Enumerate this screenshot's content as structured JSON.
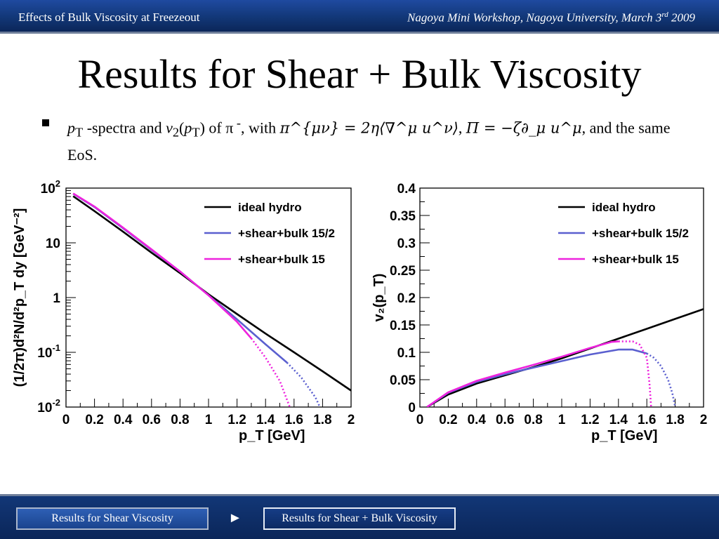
{
  "header": {
    "left": "Effects of Bulk Viscosity at Freezeout",
    "right": "Nagoya Mini Workshop, Nagoya University, March 3",
    "right_sup": "rd",
    "right_year": " 2009"
  },
  "title": "Results for Shear + Bulk Viscosity",
  "bullet": {
    "p1": "p",
    "p1_sub": "T",
    "t1": " -spectra and ",
    "v": "v",
    "v_sub": "2",
    "t2": "(",
    "p2": "p",
    "p2_sub": "T",
    "t3": ") of π",
    "pi_sup": " -",
    "t4": ", with ",
    "eq1": "π^{μν} = 2η⟨∇^μ u^ν⟩",
    "comma": ", ",
    "eq2": "Π = −ζ∂_μ u^μ",
    "t5": ", and the same EoS."
  },
  "footer": {
    "prev_label": "Results for Shear Viscosity",
    "arrow": "►",
    "current_label": "Results for Shear + Bulk Viscosity"
  },
  "colors": {
    "ideal": "#000000",
    "half": "#5a5fcf",
    "full": "#ee22dd",
    "header_bg": "#123777"
  },
  "chart_data": [
    {
      "type": "line",
      "log_y": true,
      "xlabel": "p_T [GeV]",
      "ylabel": "(1/2π)d²N/d²p_T dy [GeV⁻²]",
      "xlim": [
        0,
        2
      ],
      "ylim": [
        0.01,
        100
      ],
      "x_ticks": [
        "0",
        "0.2",
        "0.4",
        "0.6",
        "0.8",
        "1",
        "1.2",
        "1.4",
        "1.6",
        "1.8",
        "2"
      ],
      "y_ticks": [
        {
          "base": "10",
          "exp": "2",
          "value": 100
        },
        {
          "base": "10",
          "exp": "",
          "value": 10
        },
        {
          "base": "1",
          "exp": "",
          "value": 1
        },
        {
          "base": "10",
          "exp": "-1",
          "value": 0.1
        },
        {
          "base": "10",
          "exp": "-2",
          "value": 0.01
        }
      ],
      "legend": [
        "ideal hydro",
        "+shear+bulk 15/2",
        "+shear+bulk 15"
      ],
      "series": [
        {
          "name": "ideal hydro",
          "color": "#000000",
          "solid": [
            [
              0.05,
              71
            ],
            [
              0.2,
              38
            ],
            [
              0.4,
              16
            ],
            [
              0.6,
              6.6
            ],
            [
              0.8,
              2.8
            ],
            [
              1.0,
              1.15
            ],
            [
              1.2,
              0.5
            ],
            [
              1.4,
              0.22
            ],
            [
              1.6,
              0.1
            ],
            [
              1.8,
              0.045
            ],
            [
              2.0,
              0.02
            ]
          ]
        },
        {
          "name": "+shear+bulk 15/2",
          "color": "#5a5fcf",
          "solid": [
            [
              0.05,
              79
            ],
            [
              0.2,
              45
            ],
            [
              0.4,
              18.5
            ],
            [
              0.6,
              7.4
            ],
            [
              0.8,
              3.0
            ],
            [
              1.0,
              1.1
            ],
            [
              1.2,
              0.4
            ],
            [
              1.4,
              0.14
            ],
            [
              1.55,
              0.065
            ]
          ],
          "dotted": [
            [
              1.55,
              0.065
            ],
            [
              1.65,
              0.035
            ],
            [
              1.75,
              0.015
            ],
            [
              1.82,
              0.006
            ],
            [
              1.87,
              0.0015
            ],
            [
              1.89,
              0.0004
            ]
          ]
        },
        {
          "name": "+shear+bulk 15",
          "color": "#ee22dd",
          "solid": [
            [
              0.05,
              80
            ],
            [
              0.2,
              46
            ],
            [
              0.4,
              19
            ],
            [
              0.6,
              7.6
            ],
            [
              0.8,
              3.0
            ],
            [
              1.0,
              1.1
            ],
            [
              1.2,
              0.36
            ],
            [
              1.3,
              0.18
            ]
          ],
          "dotted": [
            [
              1.3,
              0.18
            ],
            [
              1.4,
              0.08
            ],
            [
              1.5,
              0.03
            ],
            [
              1.57,
              0.01
            ],
            [
              1.62,
              0.002
            ],
            [
              1.64,
              0.0004
            ]
          ]
        }
      ]
    },
    {
      "type": "line",
      "xlabel": "p_T [GeV]",
      "ylabel": "v₂(p_T)",
      "xlim": [
        0,
        2
      ],
      "ylim": [
        0,
        0.4
      ],
      "x_ticks": [
        "0",
        "0.2",
        "0.4",
        "0.6",
        "0.8",
        "1",
        "1.2",
        "1.4",
        "1.6",
        "1.8",
        "2"
      ],
      "y_ticks": [
        "0",
        "0.05",
        "0.1",
        "0.15",
        "0.2",
        "0.25",
        "0.3",
        "0.35",
        "0.4"
      ],
      "legend": [
        "ideal hydro",
        "+shear+bulk 15/2",
        "+shear+bulk 15"
      ],
      "series": [
        {
          "name": "ideal hydro",
          "color": "#000000",
          "solid": [
            [
              0.05,
              0.0
            ],
            [
              0.2,
              0.023
            ],
            [
              0.4,
              0.043
            ],
            [
              0.6,
              0.058
            ],
            [
              0.8,
              0.073
            ],
            [
              1.0,
              0.089
            ],
            [
              1.2,
              0.107
            ],
            [
              1.4,
              0.125
            ],
            [
              1.6,
              0.143
            ],
            [
              1.8,
              0.161
            ],
            [
              2.0,
              0.179
            ]
          ]
        },
        {
          "name": "+shear+bulk 15/2",
          "color": "#5a5fcf",
          "solid": [
            [
              0.05,
              0.0
            ],
            [
              0.2,
              0.026
            ],
            [
              0.4,
              0.046
            ],
            [
              0.6,
              0.06
            ],
            [
              0.8,
              0.072
            ],
            [
              1.0,
              0.084
            ],
            [
              1.2,
              0.096
            ],
            [
              1.4,
              0.105
            ],
            [
              1.5,
              0.105
            ],
            [
              1.6,
              0.098
            ]
          ],
          "dotted": [
            [
              1.6,
              0.098
            ],
            [
              1.65,
              0.09
            ],
            [
              1.7,
              0.075
            ],
            [
              1.75,
              0.05
            ],
            [
              1.78,
              0.025
            ],
            [
              1.8,
              0.0
            ]
          ]
        },
        {
          "name": "+shear+bulk 15",
          "color": "#ee22dd",
          "solid": [
            [
              0.05,
              0.0
            ],
            [
              0.2,
              0.027
            ],
            [
              0.4,
              0.048
            ],
            [
              0.6,
              0.063
            ],
            [
              0.8,
              0.077
            ],
            [
              1.0,
              0.092
            ],
            [
              1.2,
              0.108
            ],
            [
              1.35,
              0.119
            ],
            [
              1.4,
              0.12
            ]
          ],
          "dotted": [
            [
              1.4,
              0.12
            ],
            [
              1.5,
              0.12
            ],
            [
              1.55,
              0.114
            ],
            [
              1.6,
              0.09
            ],
            [
              1.62,
              0.04
            ],
            [
              1.63,
              0.0
            ]
          ]
        }
      ]
    }
  ]
}
